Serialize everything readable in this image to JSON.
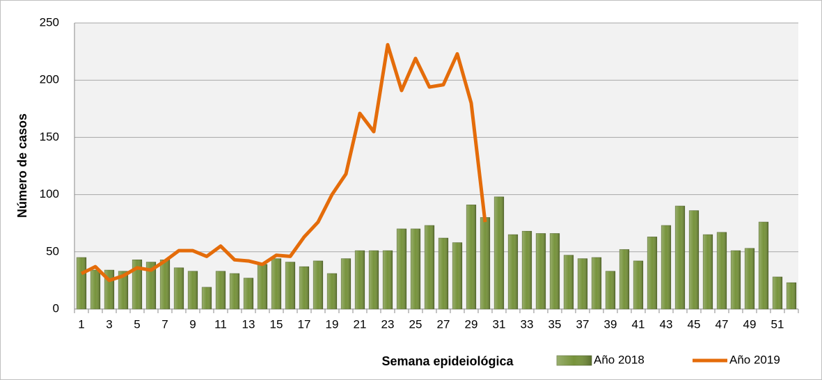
{
  "chart_data": {
    "type": "bar+line",
    "x_label": "Semana epideiológica",
    "y_label": "Número de casos",
    "categories": [
      1,
      null,
      3,
      null,
      5,
      null,
      7,
      null,
      9,
      null,
      11,
      null,
      13,
      null,
      15,
      null,
      17,
      null,
      19,
      null,
      21,
      null,
      23,
      null,
      25,
      null,
      27,
      null,
      29,
      null,
      31,
      null,
      33,
      null,
      35,
      null,
      37,
      null,
      39,
      null,
      41,
      null,
      43,
      null,
      45,
      null,
      47,
      null,
      49,
      null,
      51,
      null
    ],
    "series": [
      {
        "name": "Año 2018",
        "type": "bar",
        "color": "#77933c",
        "values": [
          45,
          34,
          34,
          33,
          43,
          41,
          43,
          36,
          33,
          19,
          33,
          31,
          27,
          39,
          44,
          41,
          37,
          42,
          31,
          44,
          51,
          51,
          51,
          70,
          70,
          73,
          62,
          58,
          91,
          80,
          98,
          65,
          68,
          66,
          66,
          47,
          44,
          45,
          33,
          52,
          42,
          63,
          73,
          90,
          86,
          65,
          67,
          51,
          53,
          76,
          28,
          23
        ]
      },
      {
        "name": "Año 2019",
        "type": "line",
        "color": "#e46c0a",
        "values": [
          31,
          37,
          25,
          29,
          36,
          34,
          42,
          51,
          51,
          46,
          55,
          43,
          42,
          39,
          47,
          46,
          63,
          76,
          100,
          118,
          171,
          155,
          231,
          191,
          219,
          194,
          196,
          223,
          180,
          76,
          null,
          null,
          null,
          null,
          null,
          null,
          null,
          null,
          null,
          null,
          null,
          null,
          null,
          null,
          null,
          null,
          null,
          null,
          null,
          null,
          null,
          null
        ]
      }
    ],
    "ylim": [
      0,
      250
    ],
    "yticks": [
      0,
      50,
      100,
      150,
      200,
      250
    ],
    "grid": true
  }
}
